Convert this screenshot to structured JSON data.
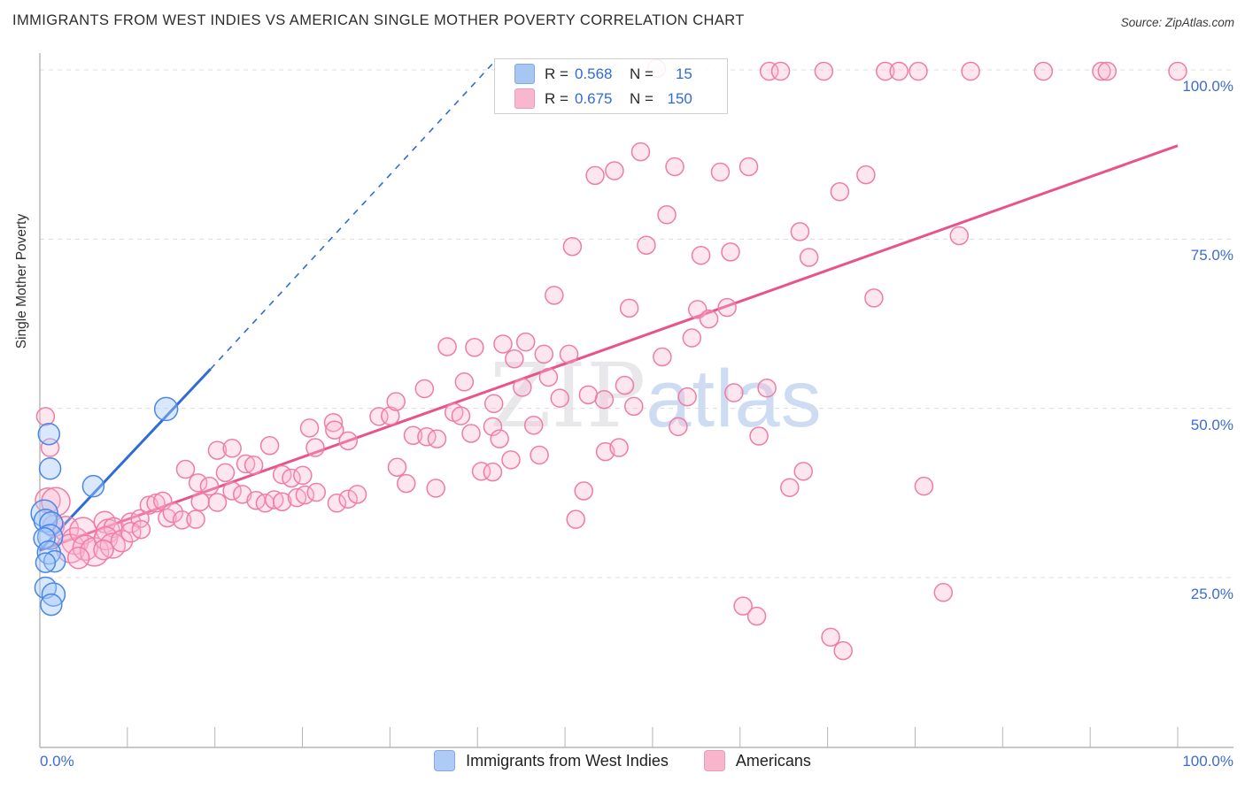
{
  "header": {
    "title": "IMMIGRANTS FROM WEST INDIES VS AMERICAN SINGLE MOTHER POVERTY CORRELATION CHART",
    "source": "Source: ZipAtlas.com"
  },
  "watermark": {
    "zip": "ZIP",
    "atlas": "atlas"
  },
  "legend_box": {
    "rows": [
      {
        "series": "Immigrants from West Indies",
        "r_label": "R =",
        "r_value": "0.568",
        "n_label": "N =",
        "n_value": "15"
      },
      {
        "series": "Americans",
        "r_label": "R =",
        "r_value": "0.675",
        "n_label": "N =",
        "n_value": "150"
      }
    ]
  },
  "axes": {
    "y_label": "Single Mother Poverty",
    "x_min_label": "0.0%",
    "x_max_label": "100.0%"
  },
  "bottom_legend": [
    {
      "label": "Immigrants from West Indies",
      "color": "blue"
    },
    {
      "label": "Americans",
      "color": "pink"
    }
  ],
  "chart_data": {
    "type": "scatter",
    "title": "IMMIGRANTS FROM WEST INDIES VS AMERICAN SINGLE MOTHER POVERTY CORRELATION CHART",
    "xlabel": "Immigrants from West Indies (%)",
    "ylabel": "Single Mother Poverty",
    "xlim": [
      0,
      105
    ],
    "ylim": [
      0,
      102.5
    ],
    "grid": "horizontal-dashed",
    "legend_position": "top-center-box and bottom-center",
    "y_ticks": [
      {
        "value": 100,
        "label": "100.0%"
      },
      {
        "value": 75,
        "label": "75.0%"
      },
      {
        "value": 50,
        "label": "50.0%"
      },
      {
        "value": 25,
        "label": "25.0%"
      }
    ],
    "colors": {
      "blue_point_stroke": "#4A86E8",
      "blue_point_fill": "rgba(164,199,247,0.42)",
      "pink_point_stroke": "#F07CA6",
      "pink_point_fill": "rgba(248,184,207,0.35)",
      "blue_trend": "#2F6BD9",
      "pink_trend": "#E8538A",
      "grid": "#DCDCDC",
      "axis": "#B5B5B5",
      "tick_label": "#3E6BD3"
    },
    "trend_lines": [
      {
        "series": "Immigrants from West Indies",
        "style": "solid",
        "x1": 0,
        "y1": 29.0,
        "x2": 15,
        "y2": 55.8
      },
      {
        "series": "Immigrants from West Indies",
        "style": "dashed",
        "x1": 15,
        "y1": 55.8,
        "x2": 40,
        "y2": 101.3
      },
      {
        "series": "Americans",
        "style": "solid",
        "x1": 0,
        "y1": 29.0,
        "x2": 100,
        "y2": 88.8
      }
    ],
    "series": [
      {
        "name": "Immigrants from West Indies",
        "R": 0.568,
        "N": 15,
        "points": [
          [
            0.8,
            46.2,
            12
          ],
          [
            0.9,
            41.1,
            12
          ],
          [
            4.7,
            38.5,
            12
          ],
          [
            11.1,
            49.9,
            13
          ],
          [
            0.4,
            34.5,
            15
          ],
          [
            0.5,
            33.4,
            13
          ],
          [
            1.0,
            33.0,
            13
          ],
          [
            0.9,
            31.0,
            14
          ],
          [
            0.4,
            30.8,
            12
          ],
          [
            0.8,
            28.7,
            13
          ],
          [
            1.3,
            27.4,
            12
          ],
          [
            0.5,
            27.2,
            11
          ],
          [
            0.5,
            23.5,
            12
          ],
          [
            1.2,
            22.5,
            13
          ],
          [
            1.0,
            21.0,
            12
          ]
        ]
      },
      {
        "name": "Americans",
        "R": 0.675,
        "N": 150,
        "points": [
          [
            0.7,
            36.4,
            14
          ],
          [
            0.5,
            48.8,
            10
          ],
          [
            0.9,
            44.2,
            10
          ],
          [
            1.4,
            36.2,
            16
          ],
          [
            1.2,
            32.6,
            12
          ],
          [
            2.3,
            32.2,
            14
          ],
          [
            3.1,
            30.4,
            15
          ],
          [
            2.7,
            29.3,
            16
          ],
          [
            3.8,
            31.9,
            15
          ],
          [
            4.0,
            29.4,
            14
          ],
          [
            4.8,
            28.8,
            16
          ],
          [
            3.4,
            27.9,
            12
          ],
          [
            5.7,
            33.2,
            12
          ],
          [
            6.0,
            31.9,
            13
          ],
          [
            6.5,
            32.4,
            11
          ],
          [
            5.8,
            30.8,
            13
          ],
          [
            6.4,
            29.7,
            14
          ],
          [
            7.2,
            30.4,
            12
          ],
          [
            5.6,
            29.1,
            11
          ],
          [
            8.0,
            33.1,
            11
          ],
          [
            8.8,
            33.7,
            10
          ],
          [
            8.0,
            31.7,
            11
          ],
          [
            8.9,
            32.1,
            10
          ],
          [
            9.6,
            35.7,
            10
          ],
          [
            10.2,
            36.0,
            10
          ],
          [
            10.8,
            36.3,
            10
          ],
          [
            11.2,
            33.8,
            10
          ],
          [
            11.7,
            34.6,
            11
          ],
          [
            12.5,
            33.5,
            10
          ],
          [
            13.7,
            33.6,
            10
          ],
          [
            12.8,
            41.0,
            10
          ],
          [
            13.9,
            39.0,
            10
          ],
          [
            14.9,
            38.5,
            10
          ],
          [
            14.1,
            36.2,
            10
          ],
          [
            15.6,
            36.1,
            10
          ],
          [
            16.9,
            37.8,
            10
          ],
          [
            17.8,
            37.3,
            10
          ],
          [
            15.6,
            43.8,
            10
          ],
          [
            16.9,
            44.1,
            10
          ],
          [
            16.3,
            40.5,
            10
          ],
          [
            18.1,
            41.8,
            10
          ],
          [
            18.8,
            41.6,
            10
          ],
          [
            19.0,
            36.4,
            10
          ],
          [
            19.8,
            36.0,
            10
          ],
          [
            20.6,
            36.5,
            10
          ],
          [
            21.3,
            36.2,
            10
          ],
          [
            22.6,
            36.8,
            10
          ],
          [
            23.3,
            37.2,
            10
          ],
          [
            24.3,
            37.6,
            10
          ],
          [
            20.2,
            44.5,
            10
          ],
          [
            21.3,
            40.2,
            10
          ],
          [
            22.1,
            39.7,
            10
          ],
          [
            23.1,
            40.1,
            10
          ],
          [
            23.7,
            47.1,
            10
          ],
          [
            24.2,
            44.2,
            10
          ],
          [
            25.8,
            47.9,
            10
          ],
          [
            25.9,
            46.8,
            10
          ],
          [
            26.1,
            36.0,
            10
          ],
          [
            27.1,
            36.6,
            10
          ],
          [
            27.9,
            37.3,
            10
          ],
          [
            27.1,
            45.2,
            10
          ],
          [
            29.8,
            48.8,
            10
          ],
          [
            30.8,
            48.9,
            10
          ],
          [
            31.3,
            51.0,
            10
          ],
          [
            31.4,
            41.3,
            10
          ],
          [
            32.2,
            38.9,
            10
          ],
          [
            34.8,
            38.2,
            10
          ],
          [
            32.8,
            46.0,
            10
          ],
          [
            34.0,
            45.8,
            10
          ],
          [
            34.9,
            45.5,
            10
          ],
          [
            33.8,
            52.9,
            10
          ],
          [
            35.8,
            59.1,
            10
          ],
          [
            38.2,
            59.0,
            10
          ],
          [
            36.4,
            49.4,
            10
          ],
          [
            37.0,
            48.9,
            10
          ],
          [
            37.3,
            53.9,
            10
          ],
          [
            37.9,
            46.3,
            10
          ],
          [
            38.8,
            40.7,
            10
          ],
          [
            39.8,
            40.6,
            10
          ],
          [
            39.9,
            50.7,
            10
          ],
          [
            39.8,
            47.3,
            10
          ],
          [
            40.4,
            45.5,
            10
          ],
          [
            41.4,
            42.4,
            10
          ],
          [
            43.9,
            43.1,
            10
          ],
          [
            41.7,
            57.3,
            10
          ],
          [
            40.7,
            59.5,
            10
          ],
          [
            42.7,
            59.8,
            10
          ],
          [
            42.4,
            53.1,
            10
          ],
          [
            43.4,
            47.5,
            10
          ],
          [
            44.3,
            58.0,
            10
          ],
          [
            44.7,
            54.6,
            10
          ],
          [
            45.2,
            66.7,
            10
          ],
          [
            45.7,
            51.5,
            10
          ],
          [
            46.5,
            58.0,
            10
          ],
          [
            46.8,
            73.9,
            10
          ],
          [
            47.1,
            33.6,
            10
          ],
          [
            47.8,
            37.8,
            10
          ],
          [
            48.2,
            52.0,
            10
          ],
          [
            48.8,
            84.4,
            10
          ],
          [
            49.6,
            51.3,
            10
          ],
          [
            49.7,
            43.6,
            10
          ],
          [
            50.9,
            44.2,
            10
          ],
          [
            50.5,
            85.1,
            10
          ],
          [
            51.4,
            53.4,
            10
          ],
          [
            51.8,
            64.8,
            10
          ],
          [
            52.2,
            50.3,
            10
          ],
          [
            52.8,
            87.9,
            10
          ],
          [
            53.3,
            74.1,
            10
          ],
          [
            54.7,
            57.6,
            10
          ],
          [
            54.2,
            100.2,
            10
          ],
          [
            55.1,
            78.6,
            10
          ],
          [
            55.8,
            85.7,
            10
          ],
          [
            56.1,
            47.3,
            10
          ],
          [
            56.9,
            51.7,
            10
          ],
          [
            57.3,
            60.4,
            10
          ],
          [
            57.8,
            64.6,
            10
          ],
          [
            58.8,
            63.2,
            10
          ],
          [
            58.1,
            72.6,
            10
          ],
          [
            59.8,
            84.9,
            10
          ],
          [
            60.4,
            64.9,
            10
          ],
          [
            60.7,
            73.1,
            10
          ],
          [
            61.0,
            52.3,
            10
          ],
          [
            62.3,
            85.7,
            10
          ],
          [
            63.2,
            45.9,
            10
          ],
          [
            63.9,
            53.0,
            10
          ],
          [
            61.8,
            20.8,
            10
          ],
          [
            63.0,
            19.3,
            10
          ],
          [
            64.1,
            99.8,
            10
          ],
          [
            65.1,
            99.8,
            10
          ],
          [
            65.9,
            38.3,
            10
          ],
          [
            67.1,
            40.7,
            10
          ],
          [
            66.8,
            76.1,
            10
          ],
          [
            67.6,
            72.3,
            10
          ],
          [
            68.9,
            99.8,
            10
          ],
          [
            69.5,
            16.2,
            10
          ],
          [
            70.6,
            14.2,
            10
          ],
          [
            70.3,
            82.0,
            10
          ],
          [
            72.6,
            84.5,
            10
          ],
          [
            73.3,
            66.3,
            10
          ],
          [
            74.3,
            99.8,
            10
          ],
          [
            75.5,
            99.8,
            10
          ],
          [
            77.2,
            99.8,
            10
          ],
          [
            77.7,
            38.5,
            10
          ],
          [
            79.4,
            22.8,
            10
          ],
          [
            80.8,
            75.5,
            10
          ],
          [
            81.8,
            99.8,
            10
          ],
          [
            88.2,
            99.8,
            10
          ],
          [
            93.3,
            99.8,
            10
          ],
          [
            93.8,
            99.8,
            10
          ],
          [
            100.0,
            99.8,
            10
          ]
        ]
      }
    ]
  }
}
